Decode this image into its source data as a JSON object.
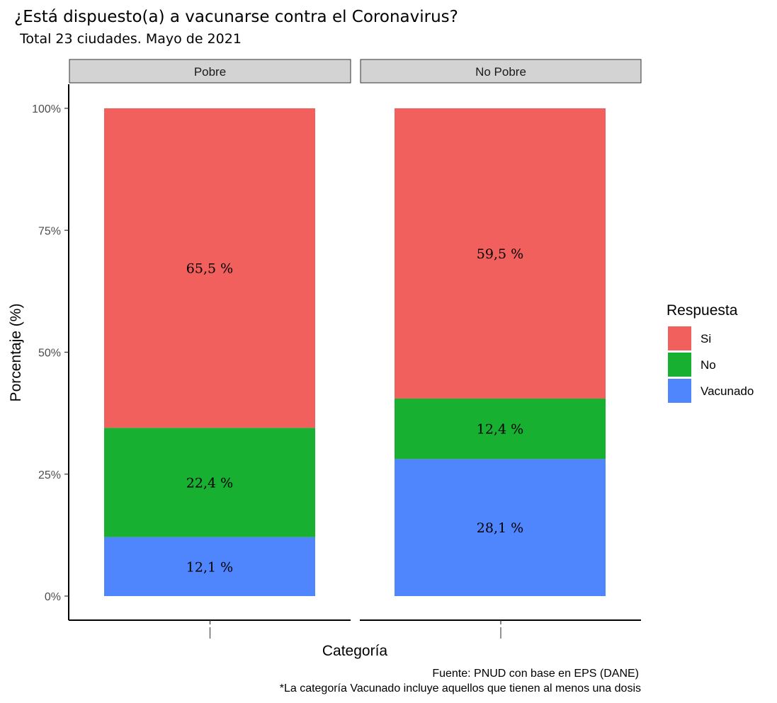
{
  "chart_data": {
    "type": "bar",
    "stacked": true,
    "title": "¿Está dispuesto(a) a vacunarse contra el Coronavirus?",
    "subtitle": "Total 23 ciudades. Mayo de 2021",
    "xlabel": "Categoría",
    "ylabel": "Porcentaje (%)",
    "ylim": [
      0,
      100
    ],
    "y_ticks": [
      {
        "value": 0,
        "label": "0%"
      },
      {
        "value": 25,
        "label": "25%"
      },
      {
        "value": 50,
        "label": "50%"
      },
      {
        "value": 75,
        "label": "75%"
      },
      {
        "value": 100,
        "label": "100%"
      }
    ],
    "legend": {
      "title": "Respuesta",
      "position": "right"
    },
    "series": [
      {
        "name": "Si",
        "color": "#F2605D"
      },
      {
        "name": "No",
        "color": "#18B030"
      },
      {
        "name": "Vacunado",
        "color": "#4F86FE"
      }
    ],
    "stack_order_bottom_to_top": [
      "Vacunado",
      "No",
      "Si"
    ],
    "facets": [
      {
        "name": "Pobre",
        "values": {
          "Si": 65.5,
          "No": 22.4,
          "Vacunado": 12.1
        },
        "labels": {
          "Si": "65,5 %",
          "No": "22,4 %",
          "Vacunado": "12,1 %"
        }
      },
      {
        "name": "No Pobre",
        "values": {
          "Si": 59.5,
          "No": 12.4,
          "Vacunado": 28.1
        },
        "labels": {
          "Si": "59,5 %",
          "No": "12,4 %",
          "Vacunado": "28,1 %"
        }
      }
    ],
    "captions": [
      "Fuente: PNUD con base en EPS (DANE)",
      "*La categoría Vacunado incluye aquellos que tienen al menos una dosis"
    ]
  }
}
